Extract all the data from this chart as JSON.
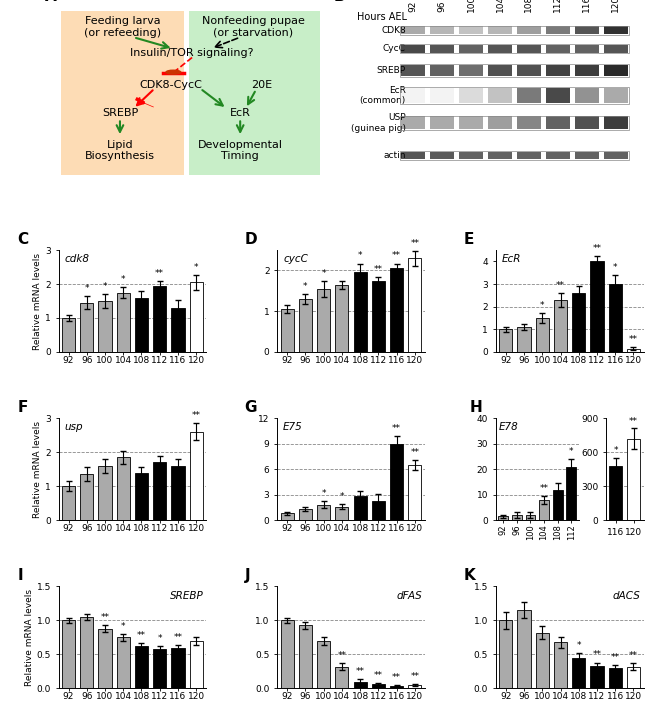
{
  "panel_C": {
    "title": "cdk8",
    "categories": [
      "92",
      "96",
      "100",
      "104",
      "108",
      "112",
      "116",
      "120"
    ],
    "bar_colors": [
      "#aaaaaa",
      "#aaaaaa",
      "#aaaaaa",
      "#aaaaaa",
      "#000000",
      "#000000",
      "#000000",
      "#ffffff"
    ],
    "values": [
      1.0,
      1.45,
      1.5,
      1.75,
      1.6,
      1.95,
      1.3,
      2.05
    ],
    "errors": [
      0.08,
      0.2,
      0.2,
      0.15,
      0.18,
      0.15,
      0.22,
      0.22
    ],
    "ylim": [
      0,
      3
    ],
    "yticks": [
      0,
      1,
      2,
      3
    ],
    "sig": [
      "",
      "*",
      "*",
      "*",
      "",
      "**",
      "",
      "*"
    ],
    "dashes": [
      1.0,
      2.0
    ]
  },
  "panel_D": {
    "title": "cycC",
    "categories": [
      "92",
      "96",
      "100",
      "104",
      "108",
      "112",
      "116",
      "120"
    ],
    "bar_colors": [
      "#aaaaaa",
      "#aaaaaa",
      "#aaaaaa",
      "#aaaaaa",
      "#000000",
      "#000000",
      "#000000",
      "#ffffff"
    ],
    "values": [
      1.05,
      1.3,
      1.55,
      1.65,
      1.95,
      1.75,
      2.05,
      2.3
    ],
    "errors": [
      0.1,
      0.12,
      0.2,
      0.1,
      0.22,
      0.1,
      0.12,
      0.18
    ],
    "ylim": [
      0,
      2.5
    ],
    "yticks": [
      0,
      1,
      2
    ],
    "sig": [
      "",
      "*",
      "*",
      "",
      "*",
      "**",
      "**",
      "**"
    ],
    "dashes": [
      1.0,
      2.0
    ]
  },
  "panel_E": {
    "title": "EcR",
    "categories": [
      "92",
      "96",
      "100",
      "104",
      "108",
      "112",
      "116",
      "120"
    ],
    "bar_colors": [
      "#aaaaaa",
      "#aaaaaa",
      "#aaaaaa",
      "#aaaaaa",
      "#000000",
      "#000000",
      "#000000",
      "#ffffff"
    ],
    "values": [
      1.0,
      1.1,
      1.5,
      2.3,
      2.6,
      4.0,
      3.0,
      0.15
    ],
    "errors": [
      0.1,
      0.15,
      0.2,
      0.3,
      0.3,
      0.25,
      0.4,
      0.05
    ],
    "ylim": [
      0,
      4.5
    ],
    "yticks": [
      0,
      1,
      2,
      3,
      4
    ],
    "sig": [
      "",
      "",
      "*",
      "**",
      "",
      "**",
      "*",
      "**"
    ],
    "dashes": [
      1.0,
      2.0,
      3.0
    ]
  },
  "panel_F": {
    "title": "usp",
    "categories": [
      "92",
      "96",
      "100",
      "104",
      "108",
      "112",
      "116",
      "120"
    ],
    "bar_colors": [
      "#aaaaaa",
      "#aaaaaa",
      "#aaaaaa",
      "#aaaaaa",
      "#000000",
      "#000000",
      "#000000",
      "#ffffff"
    ],
    "values": [
      1.0,
      1.35,
      1.6,
      1.85,
      1.4,
      1.7,
      1.6,
      2.6
    ],
    "errors": [
      0.15,
      0.2,
      0.2,
      0.2,
      0.15,
      0.2,
      0.2,
      0.25
    ],
    "ylim": [
      0,
      3
    ],
    "yticks": [
      0,
      1,
      2,
      3
    ],
    "sig": [
      "",
      "",
      "",
      "",
      "",
      "",
      "",
      "**"
    ],
    "dashes": [
      1.0,
      2.0
    ]
  },
  "panel_G": {
    "title": "E75",
    "categories": [
      "92",
      "96",
      "100",
      "104",
      "108",
      "112",
      "116",
      "120"
    ],
    "bar_colors": [
      "#aaaaaa",
      "#aaaaaa",
      "#aaaaaa",
      "#aaaaaa",
      "#000000",
      "#000000",
      "#000000",
      "#ffffff"
    ],
    "values": [
      0.8,
      1.3,
      1.8,
      1.6,
      2.8,
      2.3,
      9.0,
      6.5
    ],
    "errors": [
      0.2,
      0.25,
      0.4,
      0.3,
      0.6,
      0.8,
      0.9,
      0.6
    ],
    "ylim": [
      0,
      12
    ],
    "yticks": [
      0,
      3,
      6,
      9,
      12
    ],
    "sig": [
      "",
      "",
      "*",
      "*",
      "",
      "",
      "**",
      "**"
    ],
    "dashes": [
      3.0,
      6.0,
      9.0
    ]
  },
  "panel_H_left": {
    "title": "E78",
    "categories": [
      "92",
      "96",
      "100",
      "104",
      "108",
      "112"
    ],
    "bar_colors": [
      "#aaaaaa",
      "#aaaaaa",
      "#aaaaaa",
      "#aaaaaa",
      "#000000",
      "#000000"
    ],
    "values": [
      1.5,
      2.0,
      2.0,
      8.0,
      12.0,
      21.0
    ],
    "errors": [
      0.5,
      1.0,
      1.0,
      1.5,
      2.5,
      3.0
    ],
    "ylim": [
      0,
      40
    ],
    "yticks": [
      0,
      10,
      20,
      30,
      40
    ],
    "sig": [
      "",
      "",
      "",
      "**",
      "",
      "*"
    ],
    "dashes": [
      10.0,
      20.0,
      30.0
    ]
  },
  "panel_H_right": {
    "categories": [
      "116",
      "120"
    ],
    "bar_colors": [
      "#000000",
      "#ffffff"
    ],
    "values": [
      480,
      720
    ],
    "errors": [
      70,
      90
    ],
    "ylim": [
      0,
      900
    ],
    "yticks": [
      0,
      300,
      600,
      900
    ],
    "sig": [
      "*",
      "**"
    ],
    "dashes": [
      300.0,
      600.0
    ]
  },
  "panel_I": {
    "title": "SREBP",
    "categories": [
      "92",
      "96",
      "100",
      "104",
      "108",
      "112",
      "116",
      "120"
    ],
    "bar_colors": [
      "#aaaaaa",
      "#aaaaaa",
      "#aaaaaa",
      "#aaaaaa",
      "#000000",
      "#000000",
      "#000000",
      "#ffffff"
    ],
    "values": [
      1.0,
      1.05,
      0.88,
      0.75,
      0.63,
      0.58,
      0.6,
      0.7
    ],
    "errors": [
      0.04,
      0.05,
      0.05,
      0.05,
      0.04,
      0.04,
      0.04,
      0.06
    ],
    "ylim": [
      0,
      1.5
    ],
    "yticks": [
      0.0,
      0.5,
      1.0,
      1.5
    ],
    "sig": [
      "",
      "",
      "**",
      "*",
      "**",
      "*",
      "**",
      ""
    ],
    "dashes": [
      0.5,
      1.0
    ]
  },
  "panel_J": {
    "title": "dFAS",
    "categories": [
      "92",
      "96",
      "100",
      "104",
      "108",
      "112",
      "116",
      "120"
    ],
    "bar_colors": [
      "#aaaaaa",
      "#aaaaaa",
      "#aaaaaa",
      "#aaaaaa",
      "#000000",
      "#000000",
      "#000000",
      "#ffffff"
    ],
    "values": [
      1.0,
      0.93,
      0.7,
      0.32,
      0.1,
      0.06,
      0.04,
      0.05
    ],
    "errors": [
      0.04,
      0.05,
      0.06,
      0.05,
      0.03,
      0.02,
      0.01,
      0.01
    ],
    "ylim": [
      0,
      1.5
    ],
    "yticks": [
      0.0,
      0.5,
      1.0,
      1.5
    ],
    "sig": [
      "",
      "",
      "",
      "**",
      "**",
      "**",
      "**",
      "**"
    ],
    "dashes": [
      0.5,
      1.0
    ]
  },
  "panel_K": {
    "title": "dACS",
    "categories": [
      "92",
      "96",
      "100",
      "104",
      "108",
      "112",
      "116",
      "120"
    ],
    "bar_colors": [
      "#aaaaaa",
      "#aaaaaa",
      "#aaaaaa",
      "#aaaaaa",
      "#000000",
      "#000000",
      "#000000",
      "#ffffff"
    ],
    "values": [
      1.0,
      1.15,
      0.82,
      0.68,
      0.45,
      0.33,
      0.3,
      0.32
    ],
    "errors": [
      0.12,
      0.12,
      0.1,
      0.08,
      0.07,
      0.05,
      0.04,
      0.05
    ],
    "ylim": [
      0,
      1.5
    ],
    "yticks": [
      0.0,
      0.5,
      1.0,
      1.5
    ],
    "sig": [
      "",
      "",
      "",
      "",
      "*",
      "**",
      "**",
      "**"
    ],
    "dashes": [
      0.5,
      1.0
    ]
  },
  "diagram": {
    "orange_color": "#FDDCB5",
    "green_color": "#C8EEC8"
  }
}
